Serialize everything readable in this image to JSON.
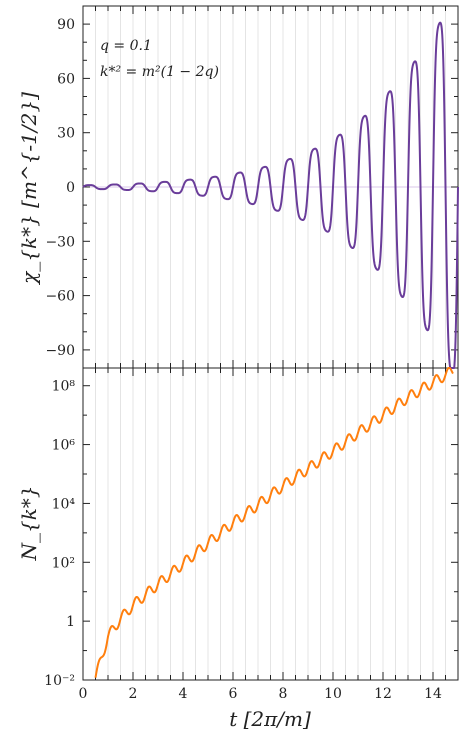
{
  "chart_data": [
    {
      "type": "line",
      "panel": "top",
      "ylabel": "χ_{k*} [m^{-1/2}]",
      "ylim": [
        -100,
        100
      ],
      "yticks": [
        -90,
        -60,
        -30,
        0,
        30,
        60,
        90
      ],
      "ytick_labels": [
        "−90",
        "−60",
        "−30",
        "0",
        "30",
        "60",
        "90"
      ],
      "xlim": [
        0,
        15
      ],
      "annotations": [
        "q = 0.1",
        "k*² = m²(1 − 2q)"
      ],
      "series": [
        {
          "color": "#6a3d9a",
          "x": [
            0.0,
            0.5,
            1.0,
            1.5,
            2.0,
            2.5,
            3.0,
            3.5,
            4.0,
            4.5,
            5.0,
            5.5,
            6.0,
            6.5,
            7.0,
            7.5,
            8.0,
            8.5,
            9.0,
            9.5,
            10.0,
            10.5,
            11.0,
            11.5,
            12.0,
            12.5,
            13.0,
            13.5,
            14.0,
            14.5,
            15.0
          ],
          "peak_envelope": [
            1.0,
            1.1,
            1.3,
            1.5,
            1.8,
            2.1,
            2.6,
            3.1,
            3.7,
            4.4,
            5.2,
            6.1,
            7.3,
            8.6,
            10.2,
            12.0,
            14.2,
            16.7,
            19.6,
            22.6,
            26.6,
            31.0,
            36.2,
            42.2,
            49.0,
            56.5,
            64.7,
            73.8,
            84.0,
            97.0,
            110.0
          ]
        }
      ]
    },
    {
      "type": "line",
      "panel": "bottom",
      "ylabel": "N_{k*}",
      "yscale": "log",
      "ylim": [
        0.01,
        400000000
      ],
      "yticks": [
        0.01,
        1,
        100,
        10000,
        1000000,
        100000000
      ],
      "ytick_labels": [
        "10⁻²",
        "1",
        "10²",
        "10⁴",
        "10⁶",
        "10⁸"
      ],
      "xlabel": "t [2π/m]",
      "xlim": [
        0,
        15
      ],
      "xticks": [
        0,
        2,
        4,
        6,
        8,
        10,
        12,
        14
      ],
      "xtick_labels": [
        "0",
        "2",
        "4",
        "6",
        "8",
        "10",
        "12",
        "14"
      ],
      "series": [
        {
          "color": "#ff7f0e",
          "x": [
            0.5,
            1.0,
            1.5,
            2.0,
            3.0,
            4.0,
            5.0,
            6.0,
            7.0,
            8.0,
            9.0,
            10.0,
            11.0,
            12.0,
            13.0,
            14.0,
            14.8
          ],
          "y": [
            0.012,
            0.3,
            1.2,
            3.5,
            18,
            90,
            450,
            2200,
            9000,
            40000,
            150000,
            600000,
            2500000,
            10000000,
            40000000,
            130000000,
            330000000
          ]
        }
      ]
    }
  ]
}
